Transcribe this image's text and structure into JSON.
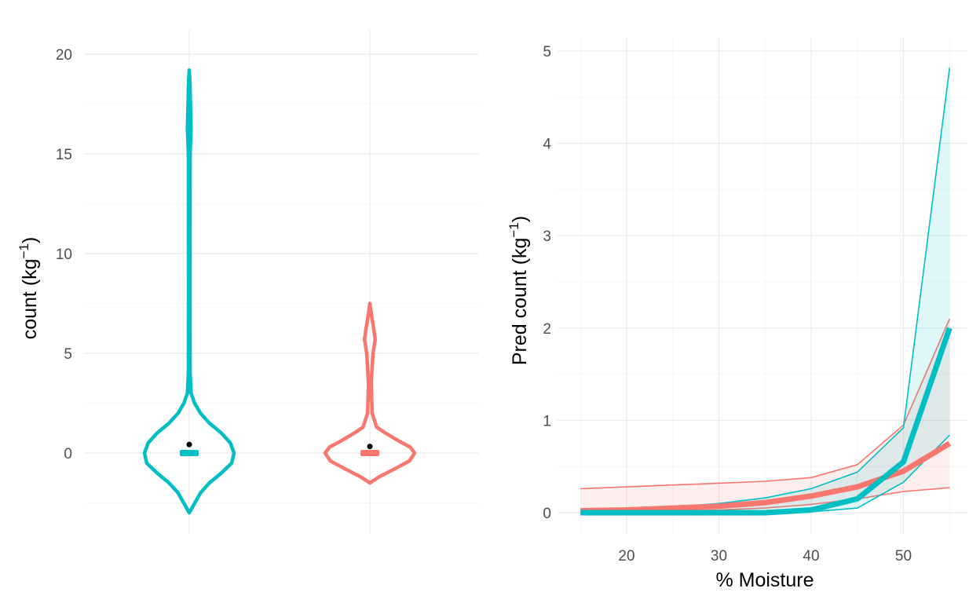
{
  "colors": {
    "teal": "#00BFC4",
    "salmon": "#F8766D",
    "point": "#000000"
  },
  "chart_data": [
    {
      "type": "violin",
      "title": "",
      "xlabel": "",
      "ylabel": "count (kg",
      "ylabel_exp": "−1",
      "ylabel_close": ")",
      "ylim": [
        -3.5,
        20.5
      ],
      "yticks": [
        "0",
        "5",
        "10",
        "15",
        "20"
      ],
      "ytick_values": [
        0,
        5,
        10,
        15,
        20
      ],
      "grid": true,
      "series": [
        {
          "color_key": "teal",
          "mean": 0.35,
          "median": 0.0,
          "outline": [
            [
              -3.0,
              0.0
            ],
            [
              -2.6,
              0.1
            ],
            [
              -2.0,
              0.25
            ],
            [
              -1.5,
              0.45
            ],
            [
              -1.0,
              0.72
            ],
            [
              -0.5,
              0.95
            ],
            [
              0.0,
              1.0
            ],
            [
              0.5,
              0.92
            ],
            [
              1.0,
              0.72
            ],
            [
              1.5,
              0.45
            ],
            [
              2.0,
              0.25
            ],
            [
              2.5,
              0.12
            ],
            [
              3.0,
              0.04
            ],
            [
              4.0,
              0.02
            ],
            [
              8.0,
              0.015
            ],
            [
              15.0,
              0.02
            ],
            [
              16.3,
              0.04
            ],
            [
              17.2,
              0.03
            ],
            [
              18.5,
              0.015
            ],
            [
              19.2,
              0.0
            ]
          ]
        },
        {
          "color_key": "salmon",
          "mean": 0.25,
          "median": 0.0,
          "outline": [
            [
              -1.5,
              0.0
            ],
            [
              -1.2,
              0.2
            ],
            [
              -0.8,
              0.55
            ],
            [
              -0.4,
              0.88
            ],
            [
              0.0,
              1.0
            ],
            [
              0.3,
              0.9
            ],
            [
              0.6,
              0.65
            ],
            [
              1.0,
              0.35
            ],
            [
              1.3,
              0.15
            ],
            [
              2.0,
              0.05
            ],
            [
              3.5,
              0.03
            ],
            [
              5.0,
              0.07
            ],
            [
              5.7,
              0.12
            ],
            [
              6.3,
              0.08
            ],
            [
              7.0,
              0.03
            ],
            [
              7.5,
              0.0
            ]
          ]
        }
      ]
    },
    {
      "type": "line",
      "title": "",
      "xlabel": "% Moisture",
      "ylabel": "Pred count (kg",
      "ylabel_exp": "−1",
      "ylabel_close": ")",
      "xlim": [
        12.5,
        57.5
      ],
      "ylim": [
        -0.15,
        5.1
      ],
      "xticks": [
        "20",
        "30",
        "40",
        "50"
      ],
      "xtick_values": [
        20,
        30,
        40,
        50
      ],
      "yticks": [
        "0",
        "1",
        "2",
        "3",
        "4",
        "5"
      ],
      "ytick_values": [
        0,
        1,
        2,
        3,
        4,
        5
      ],
      "grid": true,
      "x": [
        15,
        20,
        25,
        30,
        35,
        40,
        45,
        50,
        55
      ],
      "series": [
        {
          "color_key": "salmon",
          "fit": [
            0.02,
            0.03,
            0.05,
            0.07,
            0.11,
            0.18,
            0.28,
            0.45,
            0.75
          ],
          "lower": [
            0.0,
            0.01,
            0.02,
            0.03,
            0.05,
            0.09,
            0.15,
            0.23,
            0.27
          ],
          "upper": [
            0.26,
            0.28,
            0.3,
            0.32,
            0.34,
            0.38,
            0.52,
            0.95,
            2.1
          ]
        },
        {
          "color_key": "teal",
          "fit": [
            0.0,
            0.0,
            0.0,
            0.0,
            0.0,
            0.03,
            0.15,
            0.55,
            2.0
          ],
          "lower": [
            0.0,
            0.0,
            0.0,
            0.0,
            0.0,
            0.01,
            0.05,
            0.33,
            0.84
          ],
          "upper": [
            0.03,
            0.04,
            0.06,
            0.1,
            0.16,
            0.26,
            0.44,
            0.92,
            4.82
          ]
        }
      ]
    }
  ]
}
